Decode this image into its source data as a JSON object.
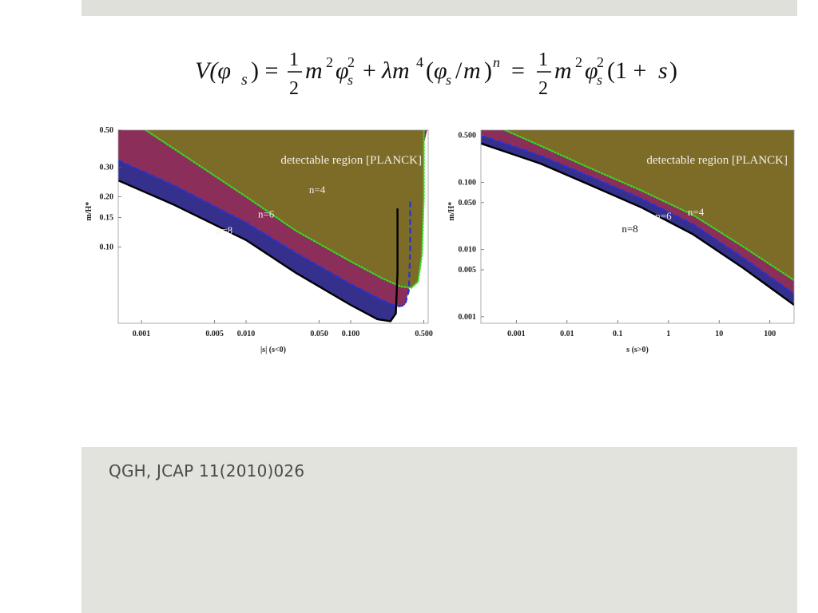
{
  "slide": {
    "equation_lhs": "V(φ",
    "citation": "QGH, JCAP 11(2010)026"
  },
  "chart_data": [
    {
      "type": "area",
      "xlabel": "|s| (s<0)",
      "ylabel": "m/H*",
      "x_scale": "log",
      "y_scale": "log",
      "xlim": [
        0.0006,
        0.55
      ],
      "ylim": [
        0.035,
        0.5
      ],
      "x_ticks": [
        {
          "v": 0.001,
          "t": "0.001"
        },
        {
          "v": 0.005,
          "t": "0.005"
        },
        {
          "v": 0.01,
          "t": "0.010"
        },
        {
          "v": 0.05,
          "t": "0.050"
        },
        {
          "v": 0.1,
          "t": "0.100"
        },
        {
          "v": 0.5,
          "t": "0.500"
        }
      ],
      "y_ticks": [
        {
          "v": 0.5,
          "t": "0.50"
        },
        {
          "v": 0.3,
          "t": "0.30"
        },
        {
          "v": 0.2,
          "t": "0.20"
        },
        {
          "v": 0.15,
          "t": "0.15"
        },
        {
          "v": 0.1,
          "t": "0.10"
        }
      ],
      "region_label": "detectable region [PLANCK]",
      "series": [
        {
          "name": "n=4",
          "style": "dotted",
          "color": "#33dd22",
          "fill": "#7d6b28",
          "points": [
            [
              0.0011,
              0.5
            ],
            [
              0.003,
              0.33
            ],
            [
              0.01,
              0.2
            ],
            [
              0.03,
              0.125
            ],
            [
              0.1,
              0.082
            ],
            [
              0.2,
              0.065
            ],
            [
              0.3,
              0.058
            ],
            [
              0.38,
              0.057
            ],
            [
              0.44,
              0.062
            ],
            [
              0.48,
              0.09
            ],
            [
              0.5,
              0.2
            ],
            [
              0.5,
              0.5
            ]
          ]
        },
        {
          "name": "n=6",
          "style": "dashed",
          "color": "#2233dd",
          "fill": "#8b2e5a",
          "points": [
            [
              0.0006,
              0.33
            ],
            [
              0.002,
              0.235
            ],
            [
              0.01,
              0.14
            ],
            [
              0.03,
              0.092
            ],
            [
              0.1,
              0.06
            ],
            [
              0.2,
              0.048
            ],
            [
              0.28,
              0.044
            ],
            [
              0.33,
              0.045
            ],
            [
              0.36,
              0.055
            ],
            [
              0.37,
              0.1
            ],
            [
              0.37,
              0.19
            ]
          ]
        },
        {
          "name": "n=8",
          "style": "solid",
          "color": "#000000",
          "fill": "#34308c",
          "points": [
            [
              0.0006,
              0.25
            ],
            [
              0.002,
              0.18
            ],
            [
              0.01,
              0.11
            ],
            [
              0.03,
              0.07
            ],
            [
              0.1,
              0.045
            ],
            [
              0.18,
              0.037
            ],
            [
              0.24,
              0.036
            ],
            [
              0.27,
              0.04
            ],
            [
              0.28,
              0.07
            ],
            [
              0.28,
              0.17
            ]
          ]
        }
      ],
      "labels": [
        {
          "text": "n=4",
          "x": 0.04,
          "y": 0.21
        },
        {
          "text": "n=6",
          "x": 0.013,
          "y": 0.15
        },
        {
          "text": "n=8",
          "x": 0.0052,
          "y": 0.12
        }
      ]
    },
    {
      "type": "area",
      "xlabel": "s (s>0)",
      "ylabel": "m/H*",
      "x_scale": "log",
      "y_scale": "log",
      "xlim": [
        0.0002,
        300
      ],
      "ylim": [
        0.0008,
        0.6
      ],
      "x_ticks": [
        {
          "v": 0.001,
          "t": "0.001"
        },
        {
          "v": 0.01,
          "t": "0.01"
        },
        {
          "v": 0.1,
          "t": "0.1"
        },
        {
          "v": 1,
          "t": "1"
        },
        {
          "v": 10,
          "t": "10"
        },
        {
          "v": 100,
          "t": "100"
        }
      ],
      "y_ticks": [
        {
          "v": 0.5,
          "t": "0.500"
        },
        {
          "v": 0.1,
          "t": "0.100"
        },
        {
          "v": 0.05,
          "t": "0.050"
        },
        {
          "v": 0.01,
          "t": "0.010"
        },
        {
          "v": 0.005,
          "t": "0.005"
        },
        {
          "v": 0.001,
          "t": "0.001"
        }
      ],
      "region_label": "detectable region [PLANCK]",
      "series": [
        {
          "name": "n=4",
          "style": "dotted",
          "color": "#33dd22",
          "fill": "#7d6b28",
          "points": [
            [
              0.0006,
              0.6
            ],
            [
              0.003,
              0.35
            ],
            [
              0.03,
              0.16
            ],
            [
              0.3,
              0.075
            ],
            [
              3,
              0.033
            ],
            [
              30,
              0.011
            ],
            [
              300,
              0.0035
            ]
          ]
        },
        {
          "name": "n=6",
          "style": "dashed",
          "color": "#2233dd",
          "fill": "#8b2e5a",
          "points": [
            [
              0.0002,
              0.5
            ],
            [
              0.003,
              0.25
            ],
            [
              0.03,
              0.12
            ],
            [
              0.3,
              0.057
            ],
            [
              3,
              0.024
            ],
            [
              30,
              0.0075
            ],
            [
              300,
              0.0022
            ]
          ]
        },
        {
          "name": "n=8",
          "style": "solid",
          "color": "#000000",
          "fill": "#34308c",
          "points": [
            [
              0.0002,
              0.38
            ],
            [
              0.003,
              0.19
            ],
            [
              0.03,
              0.09
            ],
            [
              0.3,
              0.042
            ],
            [
              3,
              0.017
            ],
            [
              30,
              0.0053
            ],
            [
              300,
              0.0015
            ]
          ]
        }
      ],
      "labels": [
        {
          "text": "n=4",
          "x": 2.4,
          "y": 0.032
        },
        {
          "text": "n=6",
          "x": 0.55,
          "y": 0.028
        },
        {
          "text": "n=8",
          "x": 0.12,
          "y": 0.018
        }
      ]
    }
  ]
}
